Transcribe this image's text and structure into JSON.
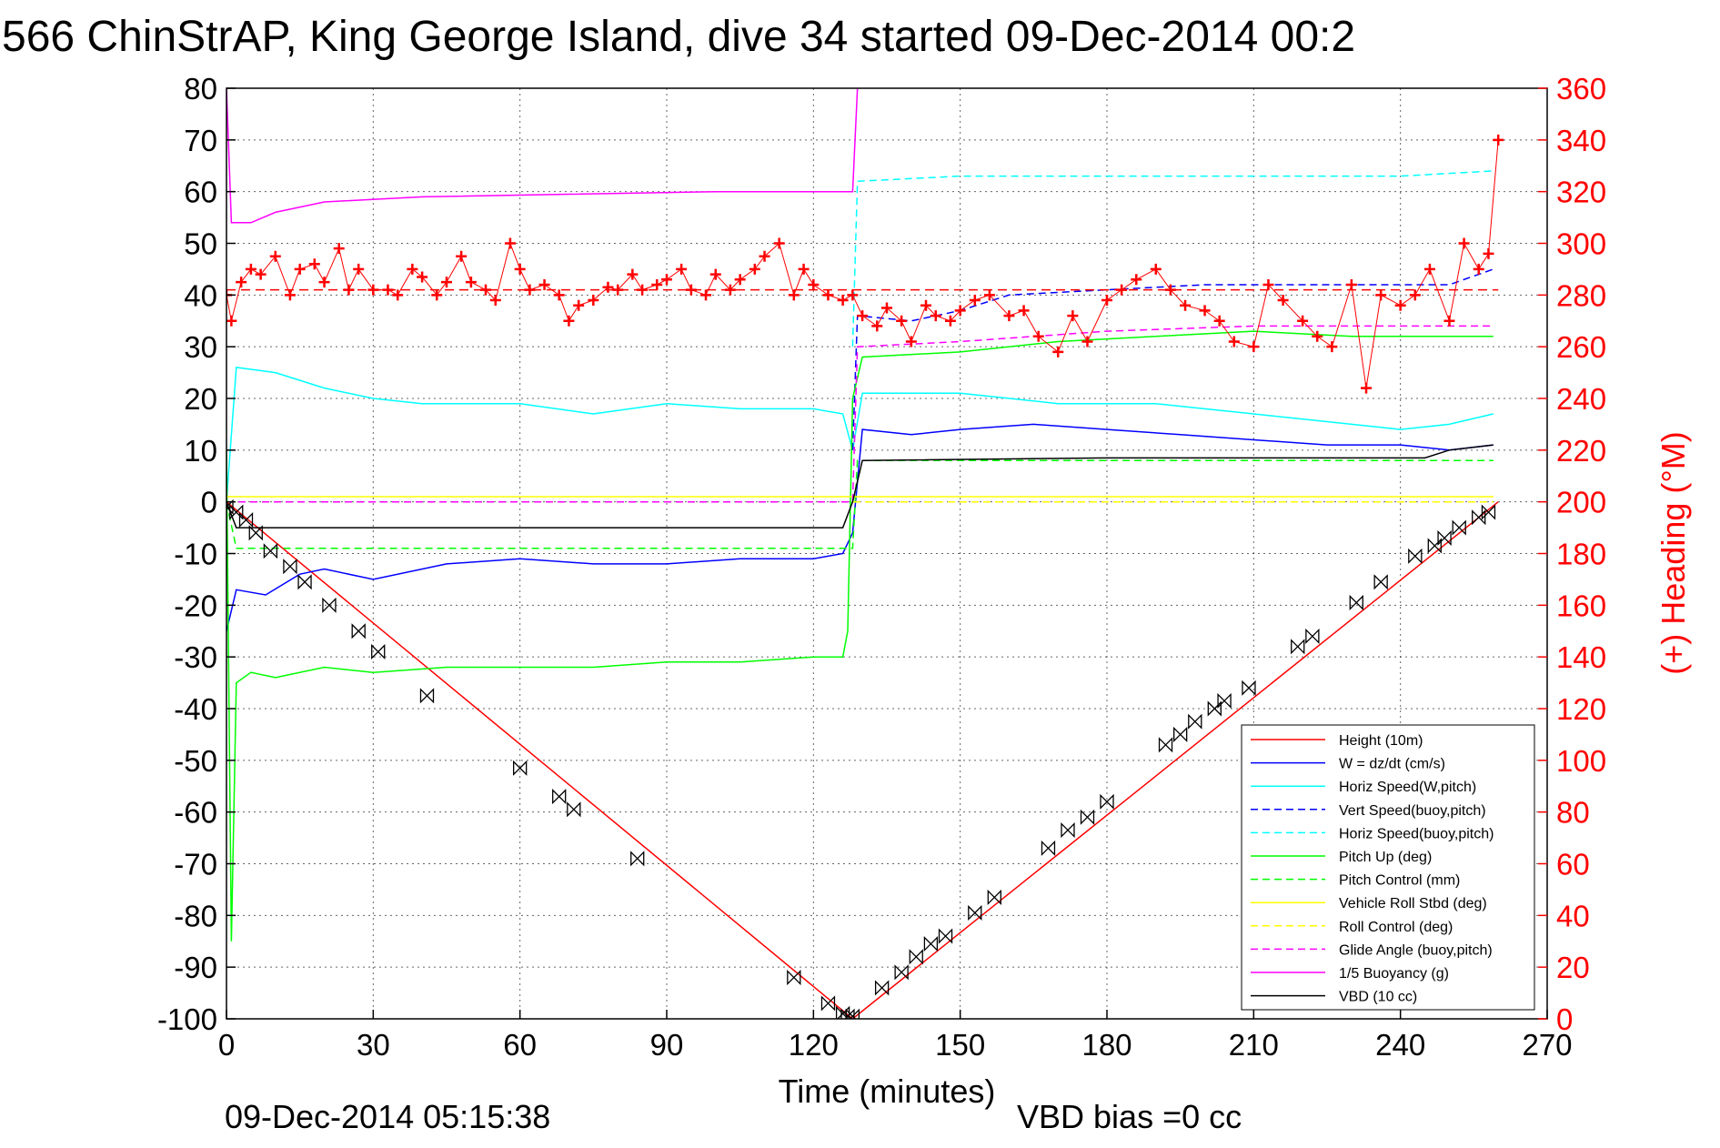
{
  "chart_data": {
    "type": "line",
    "title": "566 ChinStrAP, King George Island, dive 34 started 09-Dec-2014 00:2",
    "xlabel": "Time (minutes)",
    "ylabel_right": "(+) Heading (°M)",
    "xlim": [
      0,
      270
    ],
    "ylim": [
      -100,
      80
    ],
    "ylim_right": [
      0,
      360
    ],
    "x_ticks": [
      "0",
      "30",
      "60",
      "90",
      "120",
      "150",
      "180",
      "210",
      "240",
      "270"
    ],
    "y_ticks": [
      "80",
      "70",
      "60",
      "50",
      "40",
      "30",
      "20",
      "10",
      "0",
      "-10",
      "-20",
      "-30",
      "-40",
      "-50",
      "-60",
      "-70",
      "-80",
      "-90",
      "-100"
    ],
    "y_ticks_right": [
      "360",
      "340",
      "320",
      "300",
      "280",
      "260",
      "240",
      "220",
      "200",
      "180",
      "160",
      "140",
      "120",
      "100",
      "80",
      "60",
      "40",
      "20",
      "0"
    ],
    "grid": true,
    "legend_position": "bottom-right",
    "timestamp": "09-Dec-2014 05:15:38",
    "vbd_bias": "VBD bias =0 cc",
    "series": [
      {
        "name": "Height (10m)",
        "color": "#ff0000",
        "style": "solid",
        "x": [
          0,
          128,
          260
        ],
        "y": [
          0,
          -100,
          0
        ]
      },
      {
        "name": "W = dz/dt (cm/s)",
        "color": "#0000ff",
        "style": "solid",
        "x": [
          0,
          2,
          8,
          15,
          20,
          30,
          45,
          60,
          75,
          90,
          105,
          120,
          126,
          128,
          130,
          140,
          150,
          165,
          180,
          195,
          210,
          225,
          240,
          250,
          259
        ],
        "y": [
          -25,
          -17,
          -18,
          -14,
          -13,
          -15,
          -12,
          -11,
          -12,
          -12,
          -11,
          -11,
          -10,
          -6,
          14,
          13,
          14,
          15,
          14,
          13,
          12,
          11,
          11,
          10,
          11
        ]
      },
      {
        "name": "Horiz Speed(W,pitch)",
        "color": "#00ffff",
        "style": "solid",
        "x": [
          0,
          2,
          10,
          20,
          30,
          40,
          60,
          75,
          90,
          105,
          120,
          126,
          128,
          130,
          150,
          170,
          190,
          210,
          230,
          240,
          250,
          259
        ],
        "y": [
          0,
          26,
          25,
          22,
          20,
          19,
          19,
          17,
          19,
          18,
          18,
          17,
          10,
          21,
          21,
          19,
          19,
          17,
          15,
          14,
          15,
          17
        ]
      },
      {
        "name": "Vert Speed(buoy,pitch)",
        "color": "#0000ff",
        "style": "dashed",
        "x": [
          128,
          129,
          140,
          150,
          160,
          180,
          200,
          220,
          240,
          250,
          259
        ],
        "y": [
          10,
          36,
          35,
          37,
          40,
          41,
          42,
          42,
          42,
          42,
          45
        ]
      },
      {
        "name": "Horiz Speed(buoy,pitch)",
        "color": "#00ffff",
        "style": "dashed",
        "x": [
          128,
          129,
          150,
          180,
          210,
          240,
          259
        ],
        "y": [
          30,
          62,
          63,
          63,
          63,
          63,
          64
        ]
      },
      {
        "name": "Pitch Up (deg)",
        "color": "#00ff00",
        "style": "solid",
        "x": [
          0,
          1,
          2,
          5,
          10,
          20,
          30,
          45,
          60,
          75,
          90,
          105,
          120,
          126,
          127,
          128,
          130,
          150,
          170,
          190,
          210,
          230,
          250,
          259
        ],
        "y": [
          10,
          -85,
          -35,
          -33,
          -34,
          -32,
          -33,
          -32,
          -32,
          -32,
          -31,
          -31,
          -30,
          -30,
          -25,
          20,
          28,
          29,
          31,
          32,
          33,
          32,
          32,
          32
        ]
      },
      {
        "name": "Pitch Control (mm)",
        "color": "#00ff00",
        "style": "dashed",
        "x": [
          0,
          2,
          128,
          129,
          259
        ],
        "y": [
          0,
          -9,
          -9,
          8,
          8
        ]
      },
      {
        "name": "Vehicle Roll Stbd (deg)",
        "color": "#ffff00",
        "style": "solid",
        "x": [
          0,
          2,
          10,
          20,
          30,
          60,
          90,
          120,
          127,
          128,
          150,
          180,
          210,
          240,
          259
        ],
        "y": [
          1,
          1,
          1,
          1,
          1,
          1,
          1,
          1,
          1,
          1,
          1,
          1,
          1,
          1,
          1
        ]
      },
      {
        "name": "Roll Control (deg)",
        "color": "#ffff00",
        "style": "dashed",
        "x": [
          0,
          259
        ],
        "y": [
          0,
          0
        ]
      },
      {
        "name": "Glide Angle (buoy,pitch)",
        "color": "#ff00ff",
        "style": "dashed",
        "x": [
          0,
          128,
          129,
          150,
          180,
          210,
          240,
          259
        ],
        "y": [
          0,
          0,
          30,
          31,
          33,
          34,
          34,
          34
        ]
      },
      {
        "name": "1/5 Buoyancy (g)",
        "color": "#ff00ff",
        "style": "solid",
        "x": [
          0,
          1,
          5,
          10,
          20,
          40,
          70,
          100,
          126,
          128,
          129
        ],
        "y": [
          80,
          54,
          54,
          56,
          58,
          59,
          59.5,
          60,
          60,
          60,
          80
        ]
      },
      {
        "name": "VBD (10 cc)",
        "color": "#000000",
        "style": "solid",
        "x": [
          0,
          2,
          126,
          128,
          130,
          180,
          245,
          250,
          259
        ],
        "y": [
          0,
          -5,
          -5,
          0,
          8,
          8.5,
          8.5,
          10,
          11
        ]
      }
    ],
    "heading": {
      "name": "(+) Heading",
      "color": "#ff0000",
      "marker": "+",
      "axis": "right",
      "mean_line": 282,
      "x": [
        0,
        1,
        3,
        5,
        7,
        10,
        13,
        15,
        18,
        20,
        23,
        25,
        27,
        30,
        33,
        35,
        38,
        40,
        43,
        45,
        48,
        50,
        53,
        55,
        58,
        60,
        62,
        65,
        68,
        70,
        72,
        75,
        78,
        80,
        83,
        85,
        88,
        90,
        93,
        95,
        98,
        100,
        103,
        105,
        108,
        110,
        113,
        116,
        118,
        120,
        123,
        126,
        128,
        130,
        133,
        135,
        138,
        140,
        143,
        145,
        148,
        150,
        153,
        156,
        160,
        163,
        166,
        170,
        173,
        176,
        180,
        183,
        186,
        190,
        193,
        196,
        200,
        203,
        206,
        210,
        213,
        216,
        220,
        223,
        226,
        230,
        233,
        236,
        240,
        243,
        246,
        250,
        253,
        256,
        258,
        260
      ],
      "y": [
        280,
        270,
        285,
        290,
        288,
        295,
        280,
        290,
        292,
        285,
        298,
        282,
        290,
        282,
        282,
        280,
        290,
        287,
        280,
        285,
        295,
        285,
        282,
        278,
        300,
        290,
        282,
        284,
        280,
        270,
        276,
        278,
        283,
        282,
        288,
        282,
        284,
        286,
        290,
        282,
        280,
        288,
        282,
        286,
        290,
        295,
        300,
        280,
        290,
        284,
        280,
        278,
        280,
        272,
        268,
        275,
        270,
        262,
        276,
        272,
        270,
        274,
        278,
        280,
        272,
        274,
        264,
        258,
        272,
        262,
        278,
        282,
        286,
        290,
        282,
        276,
        274,
        270,
        262,
        260,
        284,
        278,
        270,
        264,
        260,
        284,
        244,
        280,
        276,
        280,
        290,
        270,
        300,
        290,
        296,
        340
      ]
    },
    "depth_markers": {
      "marker": "bowtie",
      "color": "#000000",
      "x": [
        0,
        2,
        4,
        6,
        9,
        13,
        16,
        21,
        27,
        31,
        41,
        60,
        68,
        71,
        84,
        116,
        123,
        126,
        127,
        128,
        134,
        138,
        141,
        144,
        147,
        153,
        157,
        168,
        172,
        176,
        180,
        192,
        195,
        198,
        202,
        204,
        209,
        219,
        222,
        231,
        236,
        243,
        247,
        249,
        252,
        256,
        258
      ],
      "y": [
        -1,
        -2,
        -3.5,
        -6,
        -9.5,
        -12.5,
        -15.5,
        -20,
        -25,
        -29,
        -37.5,
        -51.5,
        -57,
        -59.5,
        -69,
        -92,
        -97,
        -99,
        -99.5,
        -99.5,
        -94,
        -91,
        -88,
        -85.5,
        -84,
        -79.5,
        -76.5,
        -67,
        -63.5,
        -61,
        -58,
        -47,
        -45,
        -42.5,
        -40,
        -38.5,
        -36,
        -28,
        -26,
        -19.5,
        -15.5,
        -10.5,
        -8.5,
        -7,
        -5,
        -3,
        -2
      ]
    }
  }
}
